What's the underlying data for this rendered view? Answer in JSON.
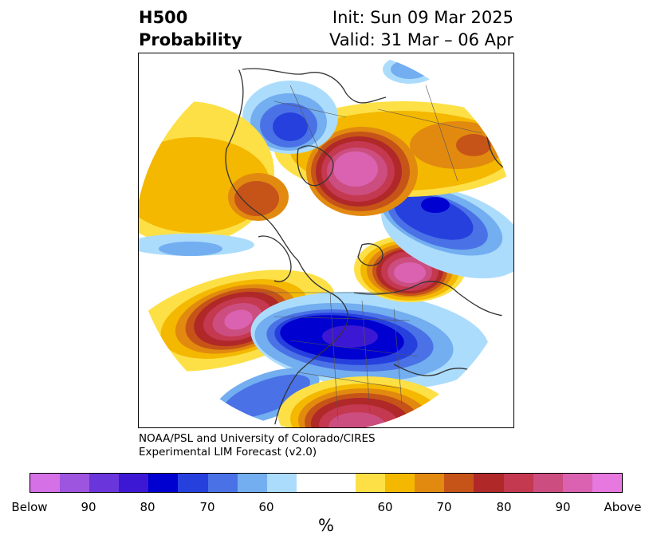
{
  "header": {
    "title_line1": "H500",
    "title_line2": "Probability",
    "init": "Init: Sun 09 Mar 2025",
    "valid": "Valid: 31 Mar – 06 Apr"
  },
  "credit": {
    "line1": "NOAA/PSL and University of Colorado/CIRES",
    "line2": "Experimental LIM Forecast (v2.0)"
  },
  "colorbar": {
    "unit": "%",
    "colors": [
      "#d670e6",
      "#9d55e0",
      "#6a36dc",
      "#3d18d4",
      "#0000d0",
      "#2640de",
      "#4a72e6",
      "#72aef0",
      "#acdcfc",
      "#ffffff",
      "#ffffff",
      "#fde046",
      "#f4b800",
      "#e28a10",
      "#c65418",
      "#b02828",
      "#c43850",
      "#cc4e80",
      "#da62b0",
      "#e678e0"
    ],
    "tick_labels": [
      "Below",
      "90",
      "80",
      "70",
      "60",
      "60",
      "70",
      "80",
      "90",
      "Above"
    ]
  },
  "colors": {
    "below_strong": "#0000d0",
    "above_strong": "#e678e0"
  }
}
